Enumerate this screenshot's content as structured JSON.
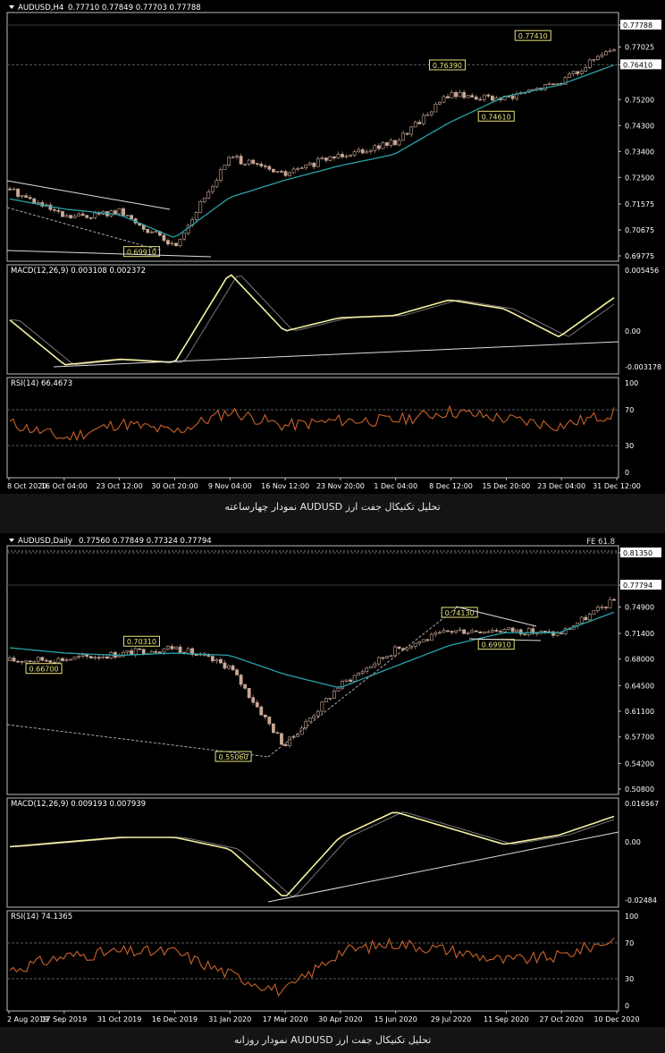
{
  "charts": [
    {
      "header": {
        "symbol": "AUDUSD,H4",
        "ohlc": "0.77710 0.77849 0.77703 0.77788"
      },
      "caption": "تحلیل تکنیکال جفت ارز AUDUSD نمودار چهارساعته",
      "price_axis": [
        "0.77788",
        "0.77025",
        "0.76410",
        "0.75200",
        "0.74300",
        "0.73400",
        "0.72500",
        "0.71575",
        "0.70675",
        "0.69775"
      ],
      "price_box_current": "0.77788",
      "price_box_level": "0.76410",
      "annotations": [
        "0.77410",
        "0.76390",
        "0.74610",
        "0.69910"
      ],
      "macd_label": "MACD(12,26,9) 0.003108 0.002372",
      "macd_axis": [
        "0.005456",
        "0.00",
        "-0.003178"
      ],
      "rsi_label": "RSI(14) 66.4673",
      "rsi_axis": [
        "100",
        "70",
        "30",
        "0"
      ],
      "time_axis": [
        "8 Oct 2020",
        "16 Oct 04:00",
        "23 Oct 12:00",
        "30 Oct 20:00",
        "9 Nov 04:00",
        "16 Nov 12:00",
        "23 Nov 20:00",
        "1 Dec 04:00",
        "8 Dec 12:00",
        "15 Dec 20:00",
        "23 Dec 04:00",
        "31 Dec 12:00"
      ]
    },
    {
      "header": {
        "symbol": "AUDUSD,Daily",
        "ohlc": "0.77560 0.77849 0.77324 0.77794"
      },
      "fe_label": "FE 61.8",
      "caption": "تحلیل تکنیکال جفت ارز AUDUSD نمودار روزانه",
      "price_axis": [
        "0.81350",
        "0.77794",
        "0.74900",
        "0.71400",
        "0.68000",
        "0.64500",
        "0.61100",
        "0.57700",
        "0.54200",
        "0.50800"
      ],
      "price_box_current": "0.77794",
      "price_box_level": "0.81350",
      "annotations": [
        "0.74130",
        "0.70310",
        "0.66700",
        "0.69910",
        "0.55060"
      ],
      "macd_label": "MACD(12,26,9) 0.009193 0.007939",
      "macd_axis": [
        "0.016567",
        "0.00",
        "-0.02484"
      ],
      "rsi_label": "RSI(14) 74.1365",
      "rsi_axis": [
        "100",
        "70",
        "30",
        "0"
      ],
      "time_axis": [
        "2 Aug 2019",
        "17 Sep 2019",
        "31 Oct 2019",
        "16 Dec 2019",
        "31 Jan 2020",
        "17 Mar 2020",
        "30 Apr 2020",
        "15 Jun 2020",
        "29 Jul 2020",
        "11 Sep 2020",
        "27 Oct 2020",
        "10 Dec 2020"
      ]
    }
  ],
  "chart_data": [
    {
      "type": "line",
      "timeframe": "H4",
      "x": [
        "8 Oct 2020",
        "16 Oct 04:00",
        "23 Oct 12:00",
        "30 Oct 20:00",
        "9 Nov 04:00",
        "16 Nov 12:00",
        "23 Nov 20:00",
        "1 Dec 04:00",
        "8 Dec 12:00",
        "15 Dec 20:00",
        "23 Dec 04:00",
        "31 Dec 12:00"
      ],
      "series": [
        {
          "values": [
            0.721,
            0.711,
            0.713,
            0.701,
            0.732,
            0.726,
            0.733,
            0.737,
            0.754,
            0.752,
            0.758,
            0.77
          ]
        },
        {
          "values": [
            0.7175,
            0.714,
            0.712,
            0.704,
            0.718,
            0.724,
            0.729,
            0.733,
            0.744,
            0.753,
            0.757,
            0.764
          ]
        }
      ],
      "macd": [
        0.001,
        -0.003,
        -0.0025,
        -0.0028,
        0.0052,
        0.0,
        0.0012,
        0.0014,
        0.0028,
        0.002,
        -0.0005,
        0.003
      ],
      "rsi": [
        55,
        38,
        55,
        45,
        68,
        52,
        58,
        58,
        68,
        60,
        52,
        66
      ],
      "ylim": [
        0.69775,
        0.77788
      ]
    },
    {
      "type": "line",
      "timeframe": "Daily",
      "x": [
        "2 Aug 2019",
        "17 Sep 2019",
        "31 Oct 2019",
        "16 Dec 2019",
        "31 Jan 2020",
        "17 Mar 2020",
        "30 Apr 2020",
        "15 Jun 2020",
        "29 Jul 2020",
        "11 Sep 2020",
        "27 Oct 2020",
        "10 Dec 2020"
      ],
      "series": [
        {
          "values": [
            0.678,
            0.68,
            0.687,
            0.696,
            0.67,
            0.565,
            0.645,
            0.692,
            0.717,
            0.719,
            0.713,
            0.758
          ]
        },
        {
          "values": [
            0.695,
            0.688,
            0.685,
            0.688,
            0.685,
            0.66,
            0.642,
            0.67,
            0.698,
            0.715,
            0.715,
            0.742
          ]
        }
      ],
      "macd": [
        -0.002,
        0.0,
        0.002,
        0.002,
        -0.003,
        -0.024,
        0.002,
        0.013,
        0.006,
        -0.001,
        0.003,
        0.011
      ],
      "rsi": [
        40,
        55,
        60,
        60,
        35,
        15,
        60,
        70,
        62,
        50,
        55,
        74
      ],
      "ylim": [
        0.508,
        0.8135
      ]
    }
  ]
}
